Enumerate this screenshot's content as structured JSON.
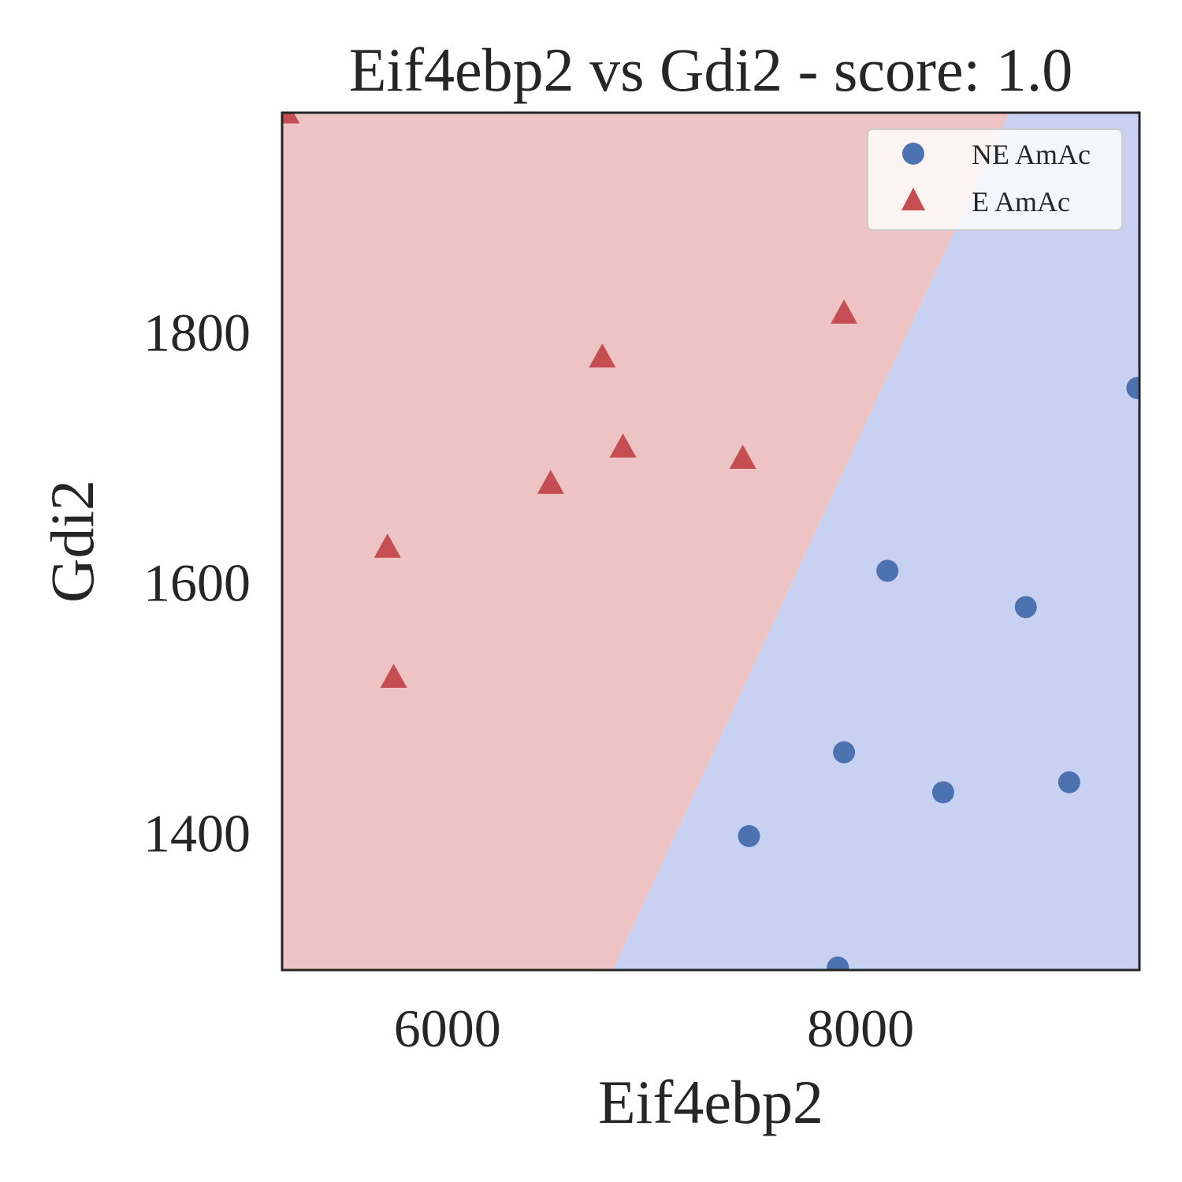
{
  "chart_data": {
    "type": "scatter",
    "title": "Eif4ebp2 vs Gdi2 - score: 1.0",
    "xlabel": "Eif4ebp2",
    "ylabel": "Gdi2",
    "xlim": [
      5200,
      9350
    ],
    "ylim": [
      1290,
      1975
    ],
    "xticks": [
      6000,
      8000
    ],
    "xtick_labels": [
      "6000",
      "8000"
    ],
    "yticks": [
      1400,
      1600,
      1800
    ],
    "ytick_labels": [
      "1400",
      "1600",
      "1800"
    ],
    "grid": false,
    "legend_position": "top-right",
    "decision_regions": {
      "boundary": [
        [
          6800,
          1290
        ],
        [
          8720,
          1975
        ]
      ],
      "left_region": "E AmAc",
      "right_region": "NE AmAc",
      "colors": {
        "E AmAc": "#edc4c3",
        "NE AmAc": "#c9d1f2"
      }
    },
    "series": [
      {
        "name": "NE AmAc",
        "marker": "circle",
        "color": "#4c72b0",
        "points": [
          [
            7460,
            1397
          ],
          [
            7890,
            1292
          ],
          [
            7920,
            1464
          ],
          [
            8130,
            1609
          ],
          [
            8400,
            1432
          ],
          [
            8800,
            1580
          ],
          [
            9010,
            1440
          ],
          [
            9340,
            1755
          ]
        ]
      },
      {
        "name": "E AmAc",
        "marker": "triangle",
        "color": "#c44e52",
        "points": [
          [
            5220,
            1975
          ],
          [
            5710,
            1628
          ],
          [
            5740,
            1524
          ],
          [
            6500,
            1679
          ],
          [
            6750,
            1780
          ],
          [
            6850,
            1708
          ],
          [
            7430,
            1699
          ],
          [
            7920,
            1815
          ]
        ]
      }
    ]
  }
}
